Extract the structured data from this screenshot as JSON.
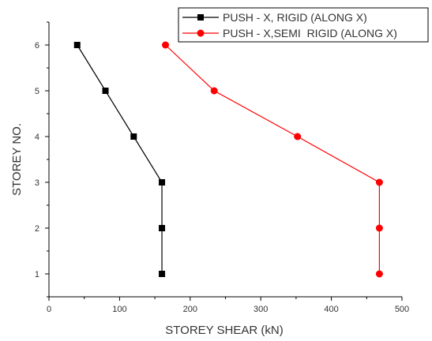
{
  "chart_data": {
    "type": "line",
    "title": "",
    "xlabel": "STOREY SHEAR (kN)",
    "ylabel": "STOREY NO.",
    "xlim": [
      0,
      500
    ],
    "ylim": [
      0.5,
      6.5
    ],
    "x_ticks": [
      0,
      100,
      200,
      300,
      400,
      500
    ],
    "y_ticks": [
      1,
      2,
      3,
      4,
      5,
      6
    ],
    "grid": false,
    "legend_position": "top-right",
    "series": [
      {
        "name": "PUSH - X, RIGID (ALONG X)",
        "color": "#000000",
        "marker": "square",
        "points": [
          {
            "x": 160,
            "y": 1
          },
          {
            "x": 160,
            "y": 2
          },
          {
            "x": 160,
            "y": 3
          },
          {
            "x": 120,
            "y": 4
          },
          {
            "x": 80,
            "y": 5
          },
          {
            "x": 40,
            "y": 6
          }
        ]
      },
      {
        "name": "PUSH - X,SEMI  RIGID (ALONG X)",
        "color": "#ff0000",
        "marker": "circle",
        "points": [
          {
            "x": 468,
            "y": 1
          },
          {
            "x": 468,
            "y": 2
          },
          {
            "x": 468,
            "y": 3
          },
          {
            "x": 352,
            "y": 4
          },
          {
            "x": 234,
            "y": 5
          },
          {
            "x": 165,
            "y": 6
          }
        ]
      }
    ]
  }
}
